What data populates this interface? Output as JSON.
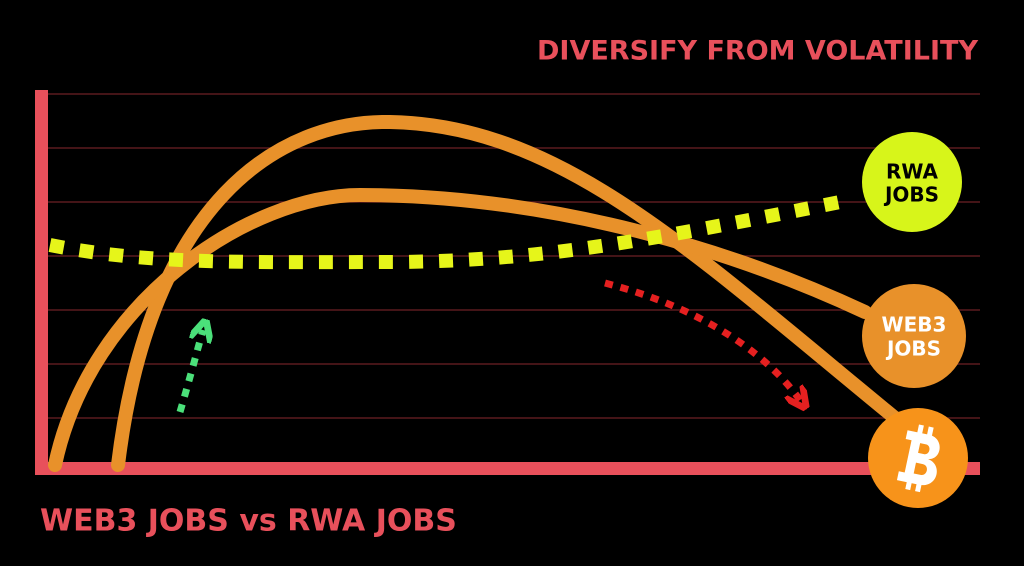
{
  "header": {
    "title": "DIVERSIFY FROM VOLATILITY"
  },
  "footer": {
    "caption": "WEB3 JOBS vs RWA JOBS"
  },
  "labels": [
    {
      "lines": [
        "RWA",
        "JOBS"
      ]
    },
    {
      "lines": [
        "WEB3",
        "JOBS"
      ]
    }
  ]
}
